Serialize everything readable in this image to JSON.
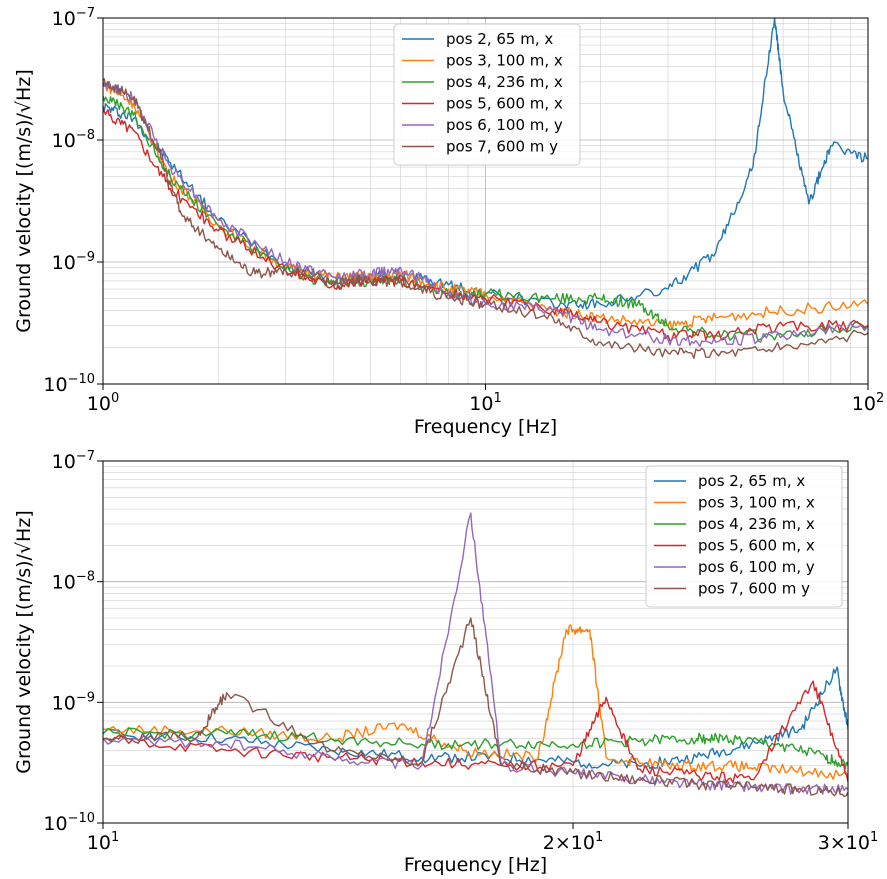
{
  "chart_data": [
    {
      "type": "line",
      "xscale": "log",
      "yscale": "log",
      "xlim": [
        1,
        100
      ],
      "ylim": [
        1e-10,
        1e-07
      ],
      "xticks": [
        {
          "v": 1,
          "label": "10^0"
        },
        {
          "v": 10,
          "label": "10^1"
        },
        {
          "v": 100,
          "label": "10^2"
        }
      ],
      "yticks": [
        {
          "v": 1e-10,
          "label": "10^-10"
        },
        {
          "v": 1e-09,
          "label": "10^-9"
        },
        {
          "v": 1e-08,
          "label": "10^-8"
        },
        {
          "v": 1e-07,
          "label": "10^-7"
        }
      ],
      "xlabel": "Frequency [Hz]",
      "ylabel": "Ground velocity [(m/s)/√Hz]",
      "grid": true,
      "legend_position": "top-center",
      "series": [
        {
          "name": "pos 2, 65 m, x",
          "color": "#1f77b4",
          "x": [
            1,
            1.2,
            1.5,
            2,
            3,
            4,
            5,
            6,
            8,
            10,
            15,
            20,
            30,
            40,
            50,
            57,
            60,
            70,
            80,
            100
          ],
          "y": [
            1.9e-08,
            1.5e-08,
            6.5e-09,
            2.2e-09,
            9.5e-10,
            7e-10,
            7.5e-10,
            8e-10,
            6.5e-10,
            5.5e-10,
            4.5e-10,
            4.5e-10,
            6e-10,
            1.2e-09,
            6e-09,
            1e-07,
            2.5e-08,
            3e-09,
            9e-09,
            7e-09
          ]
        },
        {
          "name": "pos 3, 100 m, x",
          "color": "#ff7f0e",
          "x": [
            1,
            1.2,
            1.5,
            2,
            3,
            4,
            5,
            6,
            8,
            10,
            15,
            20,
            30,
            40,
            60,
            100
          ],
          "y": [
            2.9e-08,
            2e-08,
            5e-09,
            2e-09,
            9e-10,
            7.5e-10,
            7.5e-10,
            8e-10,
            6e-10,
            5.5e-10,
            4e-10,
            3.5e-10,
            3e-10,
            3.5e-10,
            4e-10,
            4.5e-10
          ]
        },
        {
          "name": "pos 4, 236 m, x",
          "color": "#2ca02c",
          "x": [
            1,
            1.2,
            1.5,
            2,
            3,
            4,
            5,
            6,
            8,
            10,
            15,
            20,
            25,
            30,
            40,
            60,
            100
          ],
          "y": [
            2.3e-08,
            1.6e-08,
            5e-09,
            2e-09,
            8.5e-10,
            6.5e-10,
            7e-10,
            7e-10,
            5.5e-10,
            5.5e-10,
            5e-10,
            5e-10,
            4.5e-10,
            3e-10,
            2.5e-10,
            2.5e-10,
            3e-10
          ]
        },
        {
          "name": "pos 5, 600 m, x",
          "color": "#d62728",
          "x": [
            1,
            1.2,
            1.5,
            2,
            3,
            4,
            5,
            6,
            8,
            10,
            15,
            20,
            30,
            40,
            60,
            100
          ],
          "y": [
            1.7e-08,
            1.2e-08,
            4e-09,
            1.8e-09,
            8.5e-10,
            6.5e-10,
            7e-10,
            7e-10,
            5.5e-10,
            5e-10,
            4e-10,
            3.2e-10,
            2.5e-10,
            2.5e-10,
            3e-10,
            3e-10
          ]
        },
        {
          "name": "pos 6, 100 m, y",
          "color": "#9467bd",
          "x": [
            1,
            1.2,
            1.5,
            2,
            3,
            4,
            5,
            6,
            8,
            10,
            15,
            20,
            30,
            40,
            60,
            100
          ],
          "y": [
            3e-08,
            2.2e-08,
            6e-09,
            2.2e-09,
            1e-09,
            7.5e-10,
            8e-10,
            9e-10,
            5.5e-10,
            4.5e-10,
            4e-10,
            2.8e-10,
            2.3e-10,
            2.2e-10,
            2.5e-10,
            3e-10
          ]
        },
        {
          "name": "pos 7, 600 m y",
          "color": "#8c564b",
          "x": [
            1,
            1.2,
            1.4,
            1.6,
            2,
            2.5,
            3,
            4,
            5,
            6,
            8,
            10,
            15,
            20,
            30,
            40,
            60,
            100
          ],
          "y": [
            3.1e-08,
            2.2e-08,
            8e-09,
            2.5e-09,
            1.3e-09,
            8e-10,
            8.5e-10,
            7e-10,
            7e-10,
            7e-10,
            5e-10,
            4.5e-10,
            3.5e-10,
            2.2e-10,
            1.8e-10,
            1.8e-10,
            2e-10,
            2.6e-10
          ]
        }
      ]
    },
    {
      "type": "line",
      "xscale": "log",
      "yscale": "log",
      "xlim": [
        10,
        30
      ],
      "ylim": [
        1e-10,
        1e-07
      ],
      "xticks": [
        {
          "v": 10,
          "label": "10^1"
        },
        {
          "v": 20,
          "label": "2×10^1"
        },
        {
          "v": 30,
          "label": "3×10^1"
        }
      ],
      "yticks": [
        {
          "v": 1e-10,
          "label": "10^-10"
        },
        {
          "v": 1e-09,
          "label": "10^-9"
        },
        {
          "v": 1e-08,
          "label": "10^-8"
        },
        {
          "v": 1e-07,
          "label": "10^-7"
        }
      ],
      "xlabel": "Frequency [Hz]",
      "ylabel": "Ground velocity [(m/s)/√Hz]",
      "grid": true,
      "legend_position": "top-right",
      "series": [
        {
          "name": "pos 2, 65 m, x",
          "color": "#1f77b4",
          "x": [
            10,
            12,
            14,
            16,
            18,
            20,
            22,
            24,
            26,
            28,
            29.5,
            30
          ],
          "y": [
            5.5e-10,
            5e-10,
            4e-10,
            3.5e-10,
            3.5e-10,
            3.2e-10,
            3e-10,
            3.5e-10,
            4.5e-10,
            6e-10,
            1.9e-09,
            6e-10
          ]
        },
        {
          "name": "pos 3, 100 m, x",
          "color": "#ff7f0e",
          "x": [
            10,
            12,
            14,
            15.5,
            17,
            19,
            19.8,
            20.5,
            21,
            23,
            25,
            27,
            30
          ],
          "y": [
            6e-10,
            5.8e-10,
            5e-10,
            6.5e-10,
            4e-10,
            3.5e-10,
            4e-09,
            4e-09,
            3.5e-10,
            3e-10,
            3e-10,
            2.8e-10,
            2.5e-10
          ]
        },
        {
          "name": "pos 4, 236 m, x",
          "color": "#2ca02c",
          "x": [
            10,
            12,
            14,
            16,
            18,
            20,
            22,
            24,
            25,
            27,
            29,
            30
          ],
          "y": [
            5.5e-10,
            5.5e-10,
            5e-10,
            4.5e-10,
            4.5e-10,
            4.5e-10,
            4.8e-10,
            5e-10,
            5e-10,
            4.5e-10,
            3.5e-10,
            3e-10
          ]
        },
        {
          "name": "pos 5, 600 m, x",
          "color": "#d62728",
          "x": [
            10,
            12,
            14,
            16,
            18,
            20,
            21,
            22,
            24,
            26,
            28.5,
            30
          ],
          "y": [
            5e-10,
            4e-10,
            3.5e-10,
            3.2e-10,
            3e-10,
            3e-10,
            1.1e-09,
            2.8e-10,
            2.5e-10,
            2.3e-10,
            1.5e-09,
            2.2e-10
          ]
        },
        {
          "name": "pos 6, 100 m, y",
          "color": "#9467bd",
          "x": [
            10,
            12,
            14,
            16,
            17.2,
            18,
            20,
            22,
            24,
            26,
            28,
            30
          ],
          "y": [
            5e-10,
            4.5e-10,
            3.5e-10,
            3e-10,
            3.7e-08,
            3e-10,
            2.6e-10,
            2.3e-10,
            2.1e-10,
            2e-10,
            1.9e-10,
            1.9e-10
          ]
        },
        {
          "name": "pos 7, 600 m y",
          "color": "#8c564b",
          "x": [
            10,
            11.5,
            12,
            14,
            16,
            17.2,
            18,
            20,
            22,
            24,
            26,
            28,
            30
          ],
          "y": [
            5e-10,
            5.2e-10,
            1.2e-09,
            4e-10,
            3.2e-10,
            5e-09,
            3e-10,
            2.6e-10,
            2.3e-10,
            2.1e-10,
            2e-10,
            1.9e-10,
            1.8e-10
          ]
        }
      ]
    }
  ]
}
